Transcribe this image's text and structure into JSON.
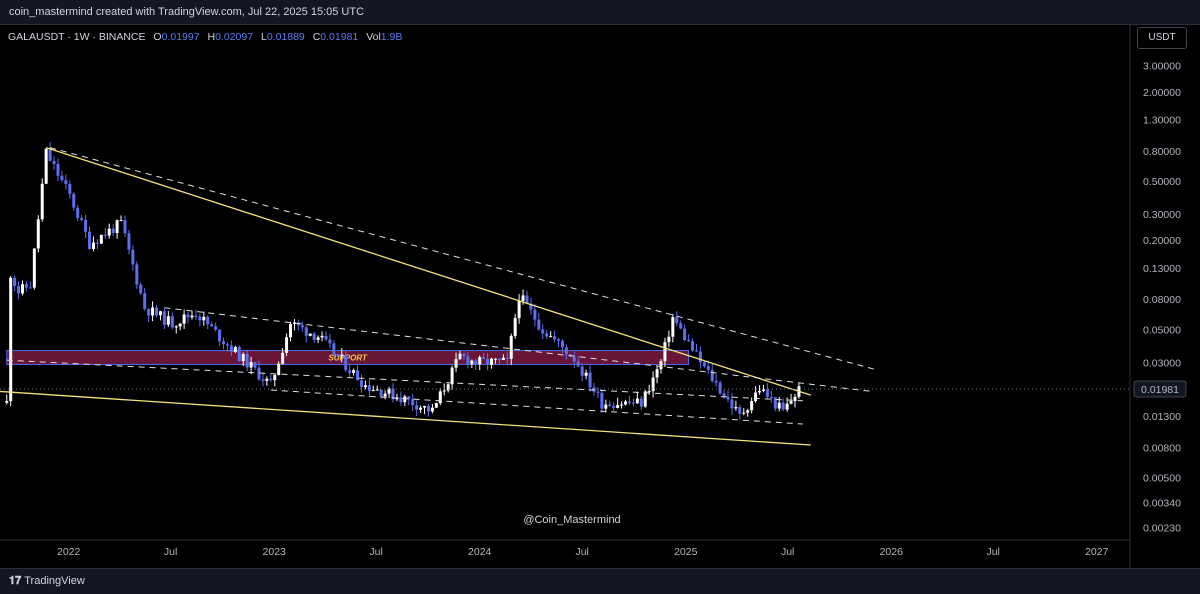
{
  "header": {
    "attribution": "coin_mastermind created with TradingView.com, Jul 22, 2025 15:05 UTC"
  },
  "symbol": {
    "name": "GALAUSDT · 1W · BINANCE",
    "o_label": "O",
    "o": "0.01997",
    "h_label": "H",
    "h": "0.02097",
    "l_label": "L",
    "l": "0.01889",
    "c_label": "C",
    "c": "0.01981",
    "vol_label": "Vol",
    "vol": "1.9B"
  },
  "currency_button": "USDT",
  "last_price": "0.01981",
  "watermark": "@Coin_Mastermind",
  "footer": {
    "brand": "TradingView"
  },
  "annotation": {
    "support_label": "SUPPORT"
  },
  "colors": {
    "up": "#ffffff",
    "down": "#5d6ef0",
    "trendline": "#f3e27a",
    "support_fill": "#7a1942",
    "support_border": "#4a6cf0"
  },
  "chart_data": {
    "type": "candlestick",
    "scale": "log",
    "ylim": [
      0.0019,
      4.2
    ],
    "y_ticks": [
      "3.00000",
      "2.00000",
      "1.30000",
      "0.80000",
      "0.50000",
      "0.30000",
      "0.20000",
      "0.13000",
      "0.08000",
      "0.05000",
      "0.03000",
      "0.01300",
      "0.00800",
      "0.00500",
      "0.00340",
      "0.00230"
    ],
    "x_ticks": [
      "2022",
      "Jul",
      "2023",
      "Jul",
      "2024",
      "Jul",
      "2025",
      "Jul",
      "2026",
      "Jul",
      "2027"
    ],
    "xlim": [
      "2021-09-01",
      "2027-03-01"
    ],
    "price_anchors": [
      [
        "2021-09-13",
        0.016
      ],
      [
        "2021-09-20",
        0.12
      ],
      [
        "2021-10-04",
        0.09
      ],
      [
        "2021-10-25",
        0.1
      ],
      [
        "2021-11-22",
        0.78
      ],
      [
        "2021-12-06",
        0.62
      ],
      [
        "2022-01-03",
        0.4
      ],
      [
        "2022-02-07",
        0.19
      ],
      [
        "2022-04-04",
        0.26
      ],
      [
        "2022-05-16",
        0.07
      ],
      [
        "2022-07-04",
        0.055
      ],
      [
        "2022-08-15",
        0.065
      ],
      [
        "2022-10-03",
        0.042
      ],
      [
        "2022-12-26",
        0.021
      ],
      [
        "2023-01-30",
        0.055
      ],
      [
        "2023-03-20",
        0.045
      ],
      [
        "2023-06-12",
        0.021
      ],
      [
        "2023-08-21",
        0.017
      ],
      [
        "2023-10-09",
        0.014
      ],
      [
        "2023-11-27",
        0.033
      ],
      [
        "2023-12-25",
        0.03
      ],
      [
        "2024-02-19",
        0.03
      ],
      [
        "2024-03-11",
        0.085
      ],
      [
        "2024-04-22",
        0.05
      ],
      [
        "2024-06-17",
        0.032
      ],
      [
        "2024-08-05",
        0.016
      ],
      [
        "2024-10-14",
        0.016
      ],
      [
        "2024-11-18",
        0.03
      ],
      [
        "2024-12-09",
        0.06
      ],
      [
        "2025-01-27",
        0.03
      ],
      [
        "2025-04-07",
        0.013
      ],
      [
        "2025-05-12",
        0.02
      ],
      [
        "2025-06-23",
        0.014
      ],
      [
        "2025-07-21",
        0.0198
      ]
    ],
    "trendlines": [
      {
        "kind": "solid",
        "from": [
          "2021-11-22",
          0.84
        ],
        "to": [
          "2025-08-11",
          0.018
        ]
      },
      {
        "kind": "solid",
        "from": [
          "2021-06-28",
          0.0198
        ],
        "to": [
          "2025-08-11",
          0.0083
        ]
      },
      {
        "kind": "dashed",
        "from": [
          "2021-11-29",
          0.84
        ],
        "to": [
          "2025-12-01",
          0.027
        ]
      },
      {
        "kind": "dashed",
        "from": [
          "2022-06-20",
          0.07
        ],
        "to": [
          "2025-12-01",
          0.019
        ]
      },
      {
        "kind": "dashed",
        "from": [
          "2021-09-13",
          0.031
        ],
        "to": [
          "2025-07-28",
          0.0165
        ]
      },
      {
        "kind": "dashed",
        "from": [
          "2022-12-26",
          0.0195
        ],
        "to": [
          "2025-07-28",
          0.0115
        ]
      }
    ],
    "support_zone": {
      "from": "2021-09-13",
      "to": "2025-01-06",
      "high": 0.036,
      "low": 0.029
    },
    "last_price_line": 0.01981
  }
}
